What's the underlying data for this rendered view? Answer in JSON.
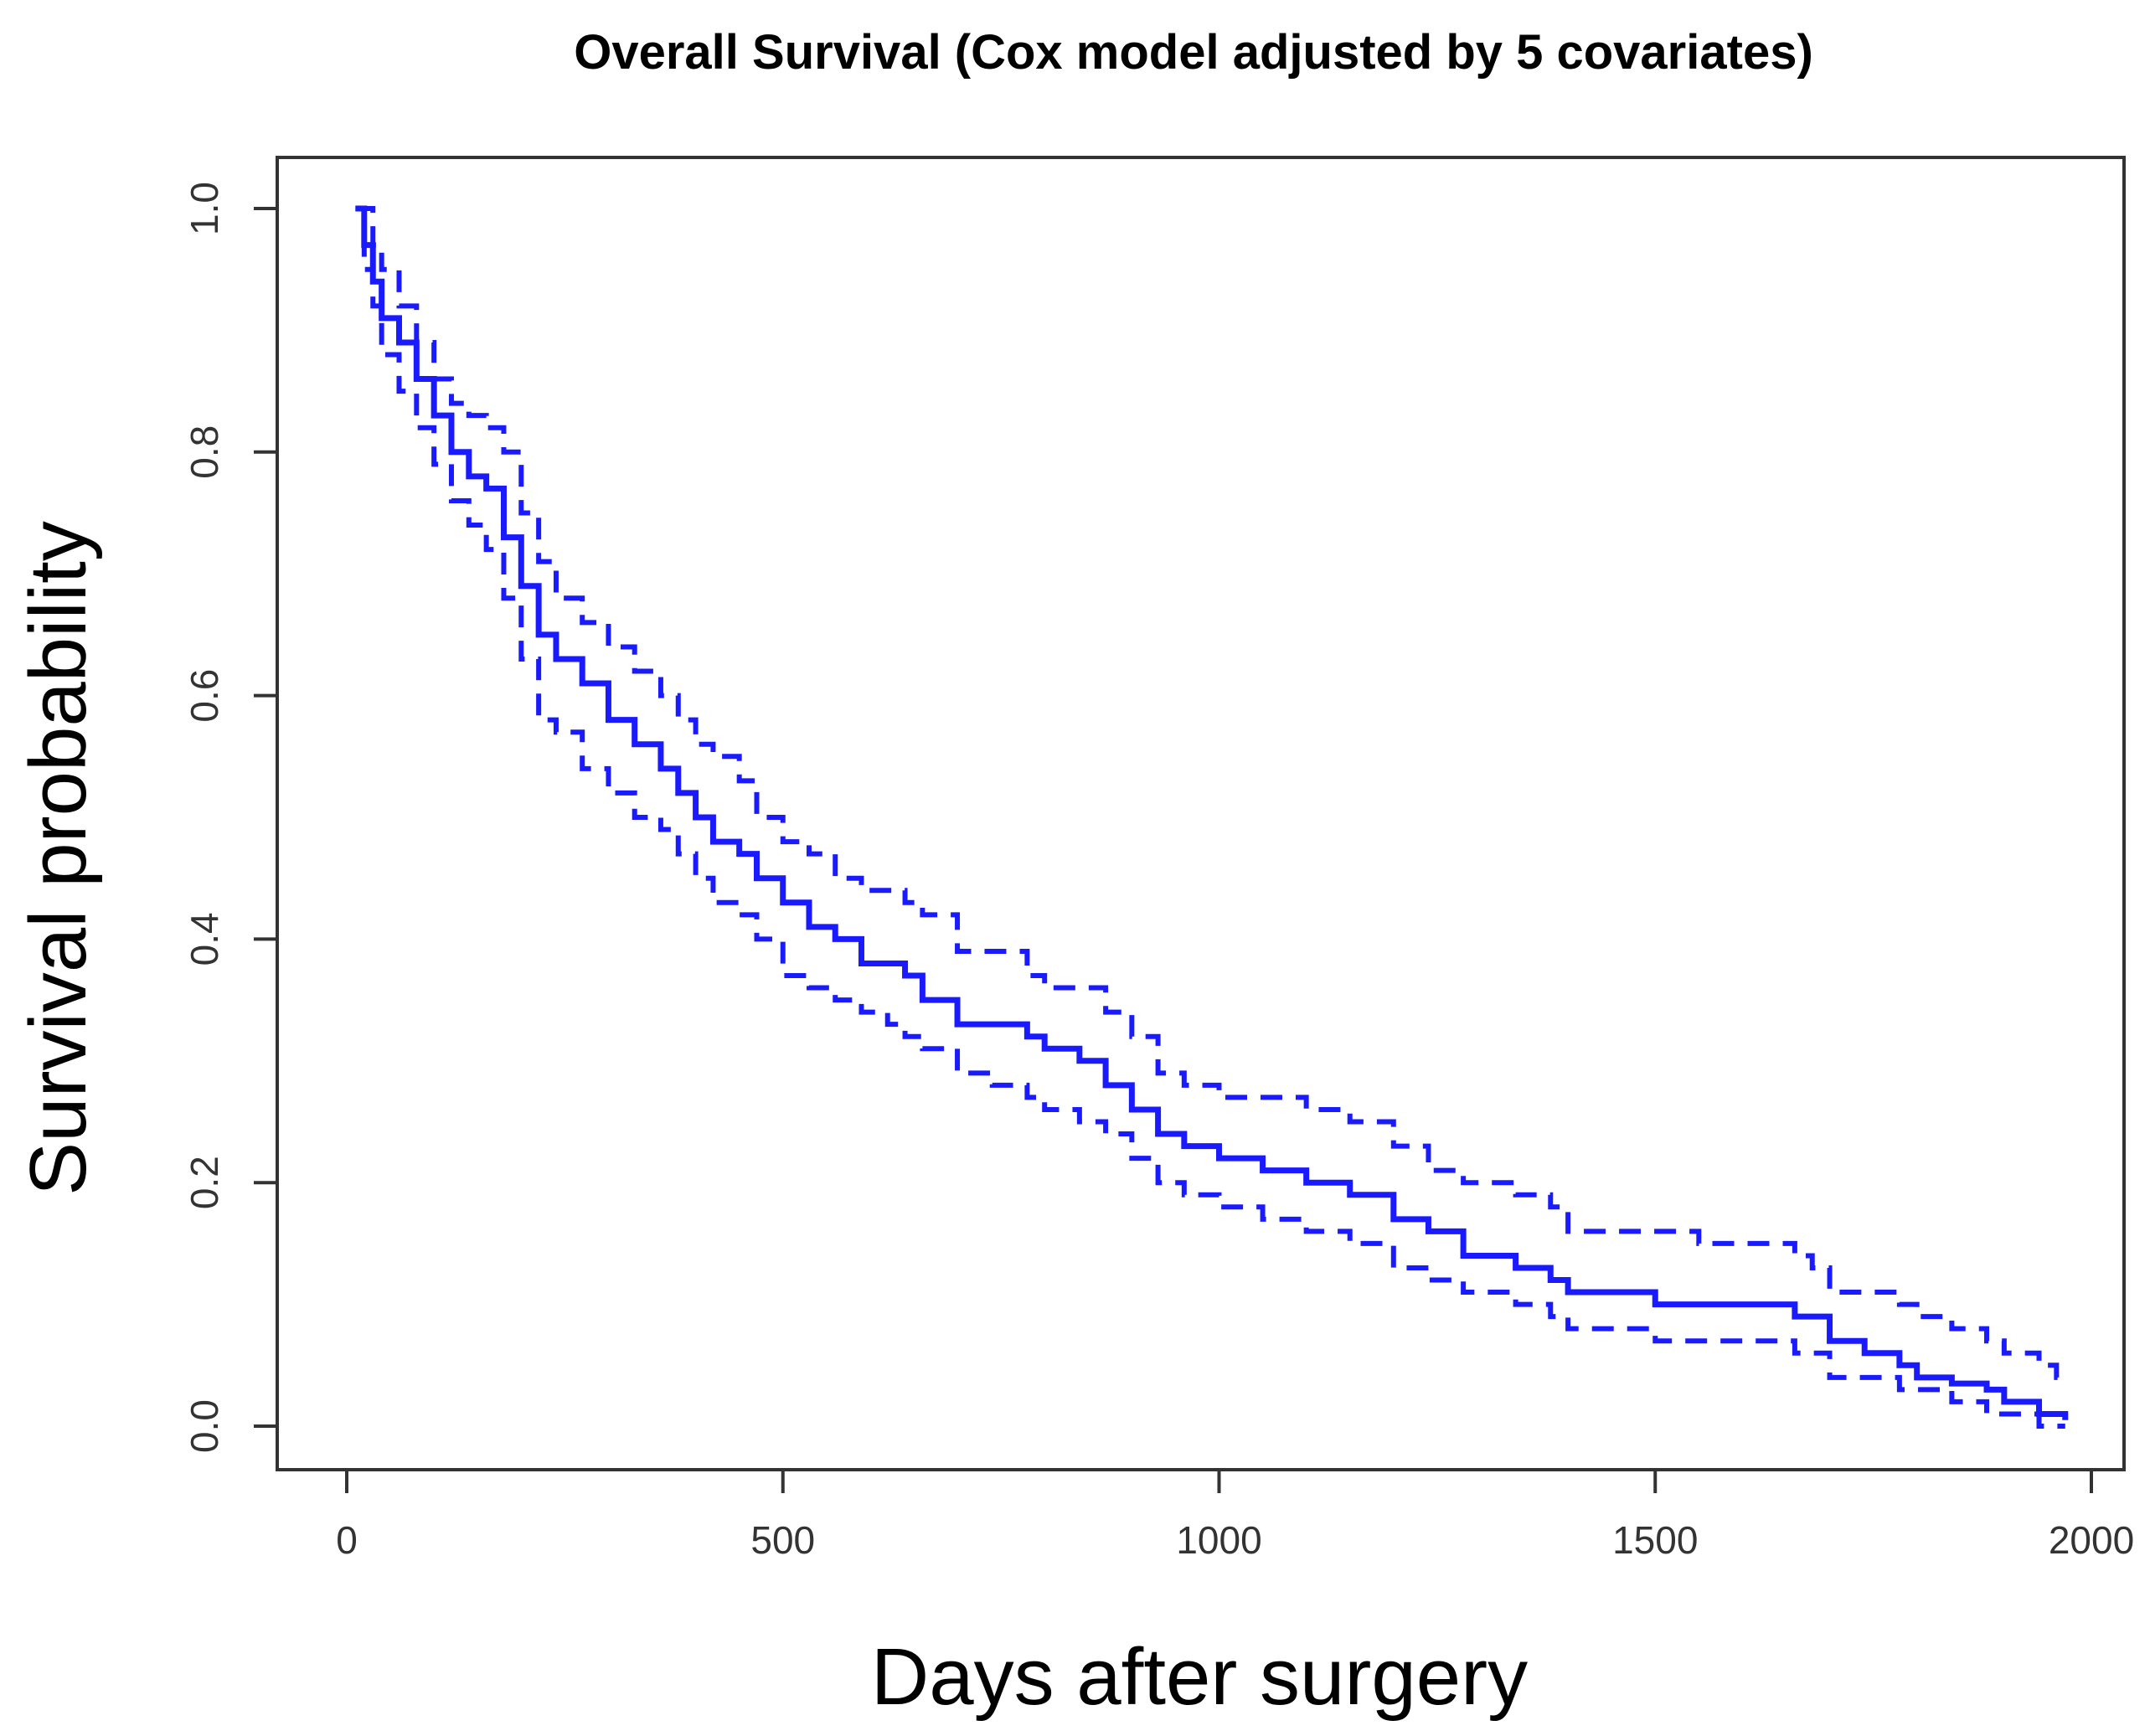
{
  "chart_data": {
    "type": "line",
    "title": "Overall Survival (Cox model adjusted by 5 covariates)",
    "xlabel": "Days after surgery",
    "ylabel": "Survival probability",
    "xlim": [
      0,
      2000
    ],
    "ylim": [
      0,
      1
    ],
    "xticks": [
      "0",
      "500",
      "1000",
      "1500",
      "2000"
    ],
    "yticks": [
      "0.0",
      "0.2",
      "0.4",
      "0.6",
      "0.8",
      "1.0"
    ],
    "grid": false,
    "line_color": "#1a1aff",
    "series": [
      {
        "style": "solid",
        "x": [
          10,
          20,
          30,
          40,
          60,
          80,
          100,
          120,
          140,
          160,
          180,
          200,
          220,
          240,
          270,
          300,
          330,
          360,
          380,
          400,
          420,
          450,
          470,
          500,
          530,
          560,
          590,
          620,
          640,
          660,
          700,
          740,
          780,
          800,
          840,
          870,
          900,
          930,
          960,
          1000,
          1050,
          1100,
          1150,
          1200,
          1240,
          1280,
          1340,
          1380,
          1400,
          1450,
          1500,
          1550,
          1600,
          1640,
          1660,
          1680,
          1700,
          1740,
          1780,
          1800,
          1840,
          1880,
          1900,
          1940,
          1960,
          1970
        ],
        "y": [
          1.0,
          0.97,
          0.94,
          0.91,
          0.89,
          0.86,
          0.83,
          0.8,
          0.78,
          0.77,
          0.73,
          0.69,
          0.65,
          0.63,
          0.61,
          0.58,
          0.56,
          0.54,
          0.52,
          0.5,
          0.48,
          0.47,
          0.45,
          0.43,
          0.41,
          0.4,
          0.38,
          0.38,
          0.37,
          0.35,
          0.33,
          0.33,
          0.32,
          0.31,
          0.3,
          0.28,
          0.26,
          0.24,
          0.23,
          0.22,
          0.21,
          0.2,
          0.19,
          0.17,
          0.16,
          0.14,
          0.13,
          0.12,
          0.11,
          0.11,
          0.1,
          0.1,
          0.1,
          0.1,
          0.09,
          0.09,
          0.07,
          0.06,
          0.05,
          0.04,
          0.035,
          0.03,
          0.02,
          0.01,
          0.01,
          0.005
        ]
      },
      {
        "style": "dashed",
        "x": [
          10,
          20,
          30,
          40,
          60,
          80,
          100,
          120,
          140,
          160,
          180,
          200,
          220,
          240,
          270,
          300,
          330,
          360,
          380,
          400,
          420,
          450,
          470,
          500,
          530,
          560,
          590,
          620,
          640,
          660,
          700,
          740,
          780,
          800,
          840,
          870,
          900,
          930,
          960,
          1000,
          1050,
          1100,
          1150,
          1200,
          1240,
          1280,
          1340,
          1380,
          1400,
          1450,
          1500,
          1550,
          1600,
          1640,
          1660,
          1680,
          1700,
          1740,
          1780,
          1800,
          1840,
          1880,
          1900,
          1940,
          1960,
          1970
        ],
        "y": [
          1.0,
          1.0,
          0.97,
          0.95,
          0.92,
          0.89,
          0.86,
          0.84,
          0.83,
          0.82,
          0.8,
          0.75,
          0.71,
          0.68,
          0.66,
          0.64,
          0.62,
          0.6,
          0.58,
          0.56,
          0.55,
          0.53,
          0.5,
          0.48,
          0.47,
          0.45,
          0.44,
          0.44,
          0.43,
          0.42,
          0.39,
          0.39,
          0.37,
          0.36,
          0.36,
          0.34,
          0.32,
          0.29,
          0.28,
          0.27,
          0.27,
          0.26,
          0.25,
          0.23,
          0.21,
          0.2,
          0.19,
          0.18,
          0.16,
          0.16,
          0.16,
          0.15,
          0.15,
          0.15,
          0.14,
          0.13,
          0.11,
          0.11,
          0.1,
          0.09,
          0.08,
          0.07,
          0.06,
          0.05,
          0.04,
          0.04
        ]
      },
      {
        "style": "dashed",
        "x": [
          10,
          20,
          30,
          40,
          60,
          80,
          100,
          120,
          140,
          160,
          180,
          200,
          220,
          240,
          270,
          300,
          330,
          360,
          380,
          400,
          420,
          450,
          470,
          500,
          530,
          560,
          590,
          620,
          640,
          660,
          700,
          740,
          780,
          800,
          840,
          870,
          900,
          930,
          960,
          1000,
          1050,
          1100,
          1150,
          1200,
          1240,
          1280,
          1340,
          1380,
          1400,
          1450,
          1500,
          1550,
          1600,
          1640,
          1660,
          1680,
          1700,
          1740,
          1780,
          1800,
          1840,
          1880,
          1900,
          1940,
          1960,
          1970
        ],
        "y": [
          1.0,
          0.95,
          0.92,
          0.88,
          0.85,
          0.82,
          0.79,
          0.76,
          0.74,
          0.72,
          0.68,
          0.63,
          0.58,
          0.57,
          0.54,
          0.52,
          0.5,
          0.49,
          0.47,
          0.45,
          0.43,
          0.42,
          0.4,
          0.37,
          0.36,
          0.35,
          0.34,
          0.33,
          0.32,
          0.31,
          0.29,
          0.28,
          0.27,
          0.26,
          0.25,
          0.24,
          0.22,
          0.2,
          0.19,
          0.18,
          0.17,
          0.16,
          0.15,
          0.13,
          0.12,
          0.11,
          0.1,
          0.09,
          0.08,
          0.08,
          0.07,
          0.07,
          0.07,
          0.07,
          0.06,
          0.06,
          0.04,
          0.04,
          0.03,
          0.03,
          0.02,
          0.01,
          0.01,
          0.0,
          0.0,
          0.0
        ]
      }
    ]
  }
}
